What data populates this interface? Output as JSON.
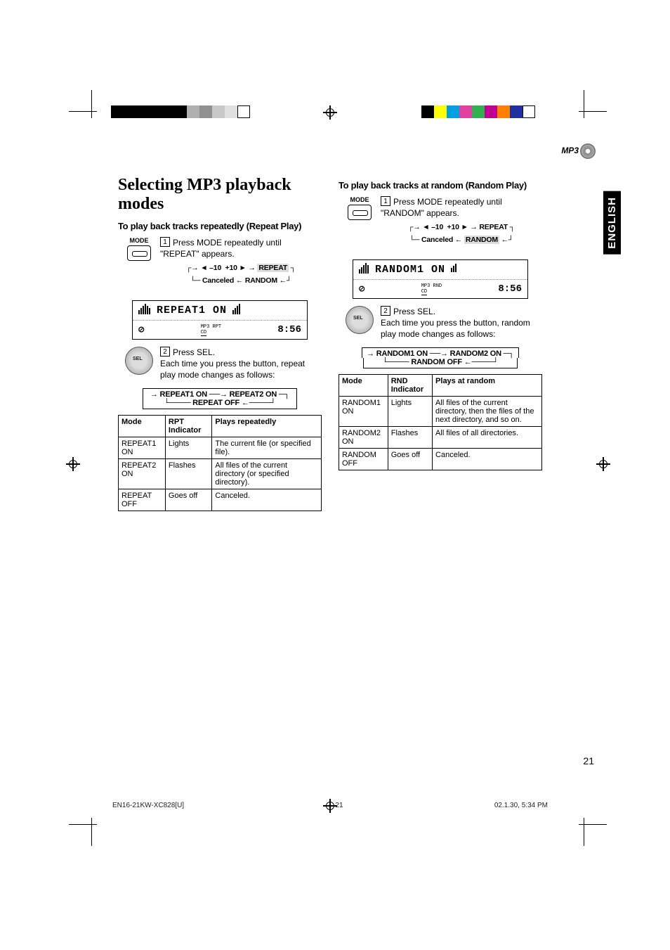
{
  "registration": {
    "left_colors": [
      "#000000",
      "#000000",
      "#000000",
      "#000000",
      "#000000",
      "#000000",
      "#b0b0b0",
      "#909090",
      "#c8c8c8",
      "#e0e0e0",
      "#ffffff"
    ],
    "right_colors": [
      "#000000",
      "#ffff00",
      "#00a0e0",
      "#e040a0",
      "#30b050",
      "#c00090",
      "#ff8000",
      "#2030a0",
      "#ffffff"
    ]
  },
  "badge": {
    "mp3": "MP3"
  },
  "lang_tab": "ENGLISH",
  "title": "Selecting MP3 playback modes",
  "left": {
    "heading": "To play back tracks repeatedly (Repeat Play)",
    "mode_label": "MODE",
    "step1_num": "1",
    "step1": "Press MODE repeatedly until \"REPEAT\" appears.",
    "flow": {
      "minus10": "◄ –10",
      "plus10": "+10 ►",
      "repeat": "REPEAT",
      "canceled": "Canceled",
      "random": "RANDOM",
      "highlight": "REPEAT"
    },
    "lcd": {
      "text": "REPEAT1  ON",
      "tags": "MP3   RPT",
      "src": "CD",
      "time": "8:56"
    },
    "step2_num": "2",
    "step2a": "Press SEL.",
    "step2b": "Each time you press the button, repeat play mode changes as follows:",
    "cycle": {
      "a": "REPEAT1 ON",
      "b": "REPEAT2 ON",
      "off": "REPEAT OFF"
    },
    "table": {
      "headers": [
        "Mode",
        "RPT Indicator",
        "Plays repeatedly"
      ],
      "rows": [
        [
          "REPEAT1 ON",
          "Lights",
          "The current file (or specified file)."
        ],
        [
          "REPEAT2 ON",
          "Flashes",
          "All files of the current directory (or specified directory)."
        ],
        [
          "REPEAT OFF",
          "Goes off",
          "Canceled."
        ]
      ]
    }
  },
  "right": {
    "heading": "To play back tracks at random (Random Play)",
    "mode_label": "MODE",
    "step1_num": "1",
    "step1": "Press MODE repeatedly until \"RANDOM\" appears.",
    "flow": {
      "minus10": "◄ –10",
      "plus10": "+10 ►",
      "repeat": "REPEAT",
      "canceled": "Canceled",
      "random": "RANDOM",
      "highlight": "RANDOM"
    },
    "lcd": {
      "text": "RANDOM1  ON",
      "tags": "MP3  RND",
      "src": "CD",
      "time": "8:56"
    },
    "step2_num": "2",
    "step2a": "Press SEL.",
    "step2b": "Each time you press the button, random play mode changes as follows:",
    "cycle": {
      "a": "RANDOM1 ON",
      "b": "RANDOM2 ON",
      "off": "RANDOM OFF"
    },
    "table": {
      "headers": [
        "Mode",
        "RND Indicator",
        "Plays at random"
      ],
      "rows": [
        [
          "RANDOM1 ON",
          "Lights",
          "All files of the current directory, then the files of the next directory, and so on."
        ],
        [
          "RANDOM2 ON",
          "Flashes",
          "All files of all directories."
        ],
        [
          "RANDOM OFF",
          "Goes off",
          "Canceled."
        ]
      ]
    }
  },
  "page_number": "21",
  "footer": {
    "doc": "EN16-21KW-XC828[U]",
    "page": "21",
    "datetime": "02.1.30, 5:34 PM"
  },
  "colors": {
    "highlight_bg": "#d8d8d8",
    "text": "#000000"
  }
}
